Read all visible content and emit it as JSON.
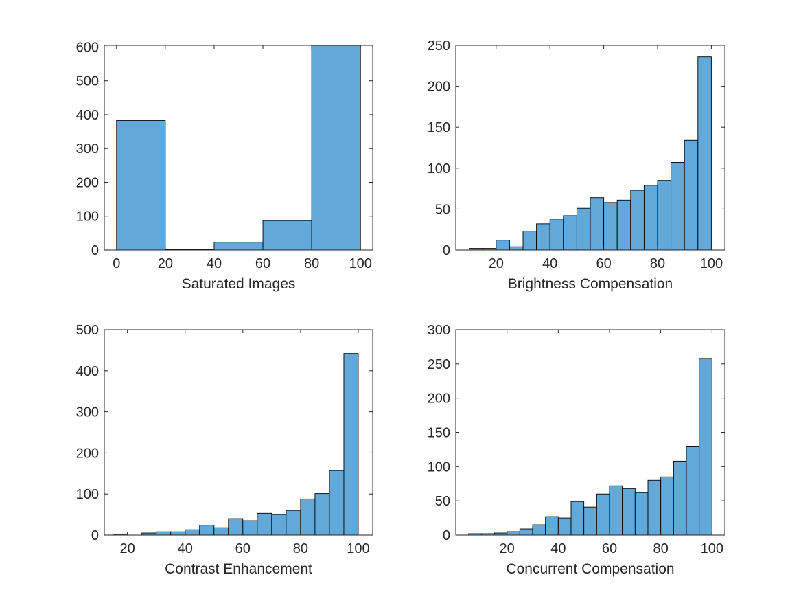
{
  "chart_data": [
    {
      "type": "bar",
      "xlabel": "Saturated Images",
      "xlim": [
        -5,
        105
      ],
      "ylim": [
        0,
        605
      ],
      "xticks": [
        0,
        20,
        40,
        60,
        80,
        100
      ],
      "yticks": [
        0,
        100,
        200,
        300,
        400,
        500,
        600
      ],
      "bin_edges": [
        0,
        20,
        40,
        60,
        80,
        100
      ],
      "counts": [
        383,
        2,
        23,
        87,
        605
      ],
      "color": "#62a8d8",
      "edgecolor": "#000000"
    },
    {
      "type": "bar",
      "xlabel": "Brightness Compensation",
      "xlim": [
        5,
        105
      ],
      "ylim": [
        0,
        250
      ],
      "xticks": [
        20,
        40,
        60,
        80,
        100
      ],
      "yticks": [
        0,
        50,
        100,
        150,
        200,
        250
      ],
      "bin_edges": [
        10,
        15,
        20,
        25,
        30,
        35,
        40,
        45,
        50,
        55,
        60,
        65,
        70,
        75,
        80,
        85,
        90,
        95,
        100
      ],
      "counts": [
        2,
        2,
        12,
        4,
        23,
        32,
        37,
        42,
        51,
        64,
        58,
        61,
        73,
        79,
        85,
        107,
        134,
        236
      ],
      "color": "#62a8d8",
      "edgecolor": "#000000"
    },
    {
      "type": "bar",
      "xlabel": "Contrast Enhancement",
      "xlim": [
        12,
        105
      ],
      "ylim": [
        0,
        500
      ],
      "xticks": [
        20,
        40,
        60,
        80,
        100
      ],
      "yticks": [
        0,
        100,
        200,
        300,
        400,
        500
      ],
      "bin_edges": [
        15,
        20,
        25,
        30,
        35,
        40,
        45,
        50,
        55,
        60,
        65,
        70,
        75,
        80,
        85,
        90,
        95,
        100
      ],
      "counts": [
        2,
        0,
        5,
        8,
        8,
        13,
        24,
        18,
        40,
        35,
        53,
        50,
        60,
        88,
        101,
        157,
        442
      ],
      "color": "#62a8d8",
      "edgecolor": "#000000"
    },
    {
      "type": "bar",
      "xlabel": "Concurrent Compensation",
      "xlim": [
        0,
        105
      ],
      "ylim": [
        0,
        300
      ],
      "xticks": [
        20,
        40,
        60,
        80,
        100
      ],
      "yticks": [
        0,
        50,
        100,
        150,
        200,
        250,
        300
      ],
      "bin_edges": [
        5,
        10,
        15,
        20,
        25,
        30,
        35,
        40,
        45,
        50,
        55,
        60,
        65,
        70,
        75,
        80,
        85,
        90,
        95,
        100
      ],
      "counts": [
        2,
        2,
        3,
        5,
        9,
        15,
        27,
        25,
        49,
        41,
        60,
        72,
        68,
        62,
        80,
        85,
        108,
        129,
        258
      ],
      "color": "#62a8d8",
      "edgecolor": "#000000"
    }
  ]
}
